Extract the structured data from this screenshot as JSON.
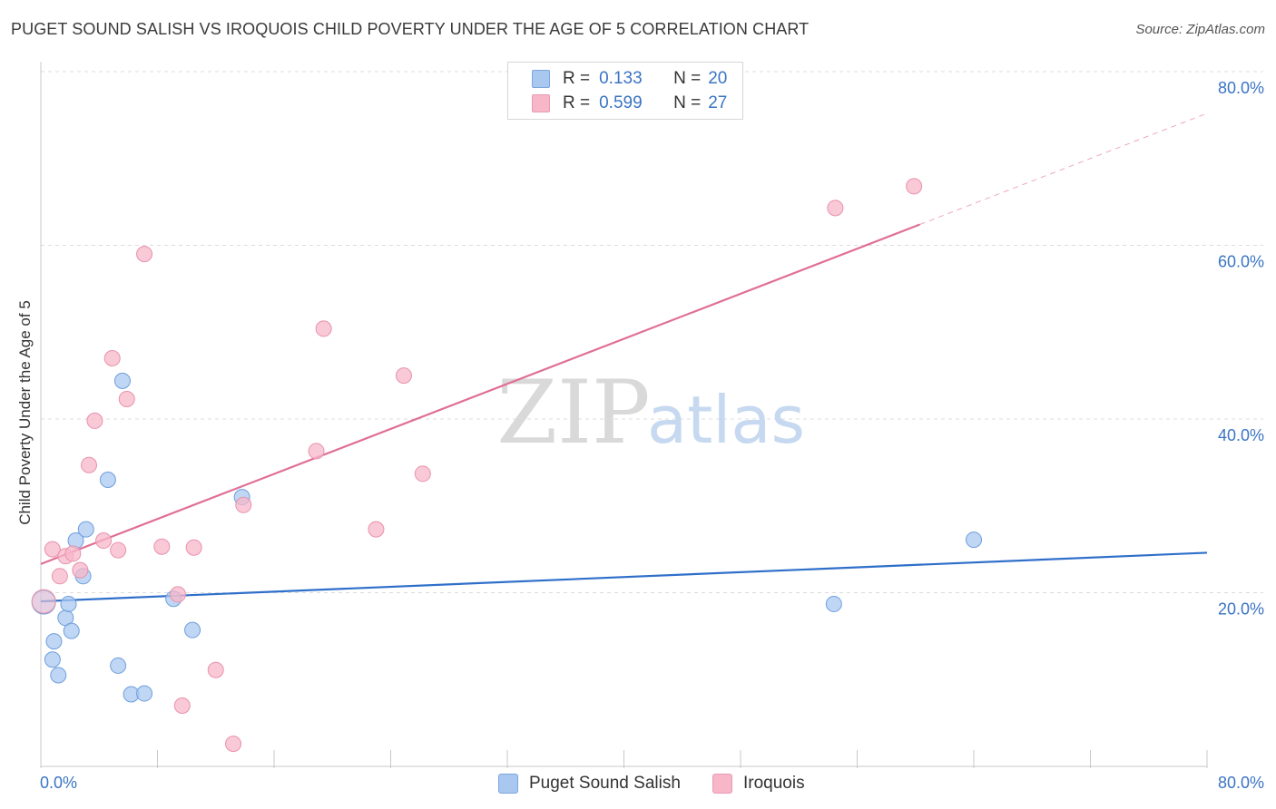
{
  "title": "PUGET SOUND SALISH VS IROQUOIS CHILD POVERTY UNDER THE AGE OF 5 CORRELATION CHART",
  "source": "Source: ZipAtlas.com",
  "watermark": {
    "zip": "ZIP",
    "atlas": "atlas"
  },
  "legend": {
    "rows": [
      {
        "r_label": "R =",
        "r_value": "0.133",
        "n_label": "N =",
        "n_value": "20",
        "color": "#a9c8f0"
      },
      {
        "r_label": "R =",
        "r_value": "0.599",
        "n_label": "N =",
        "n_value": "27",
        "color": "#f7b7c9"
      }
    ],
    "bottom": [
      {
        "name": "Puget Sound Salish",
        "color": "#a9c8f0"
      },
      {
        "name": "Iroquois",
        "color": "#f7b7c9"
      }
    ]
  },
  "chart_data": {
    "type": "scatter",
    "xlabel": "",
    "ylabel": "Child Poverty Under the Age of 5",
    "xlim": [
      0,
      80
    ],
    "ylim": [
      0,
      80
    ],
    "x_tick_labels": [
      "0.0%",
      "80.0%"
    ],
    "y_ticks": [
      {
        "value": 20,
        "label": "20.0%"
      },
      {
        "value": 40,
        "label": "40.0%"
      },
      {
        "value": 60,
        "label": "60.0%"
      },
      {
        "value": 80,
        "label": "80.0%"
      }
    ],
    "series": [
      {
        "name": "Puget Sound Salish",
        "color": "#a9c8f0",
        "stroke": "#6f9fdc",
        "line_color": "#2f6fca",
        "points": [
          [
            0.2,
            18.9
          ],
          [
            0.8,
            12.3
          ],
          [
            0.9,
            14.4
          ],
          [
            1.2,
            10.5
          ],
          [
            1.7,
            17.1
          ],
          [
            1.9,
            18.7
          ],
          [
            2.1,
            15.6
          ],
          [
            2.4,
            26.0
          ],
          [
            2.9,
            21.9
          ],
          [
            3.1,
            27.3
          ],
          [
            5.6,
            44.4
          ],
          [
            4.6,
            33.0
          ],
          [
            5.3,
            11.6
          ],
          [
            6.2,
            8.3
          ],
          [
            7.1,
            8.4
          ],
          [
            9.1,
            19.3
          ],
          [
            10.4,
            15.7
          ],
          [
            13.8,
            31.0
          ],
          [
            54.4,
            18.7
          ],
          [
            64.0,
            26.1
          ]
        ],
        "trend": [
          [
            0,
            19.0
          ],
          [
            80,
            24.6
          ]
        ]
      },
      {
        "name": "Iroquois",
        "color": "#f7b7c9",
        "stroke": "#e892ab",
        "line_color": "#e06f96",
        "points": [
          [
            0.2,
            19.0
          ],
          [
            0.8,
            25.0
          ],
          [
            1.3,
            21.9
          ],
          [
            1.7,
            24.2
          ],
          [
            2.2,
            24.5
          ],
          [
            2.7,
            22.6
          ],
          [
            3.3,
            34.7
          ],
          [
            3.7,
            39.8
          ],
          [
            4.3,
            26.0
          ],
          [
            4.9,
            47.0
          ],
          [
            5.3,
            24.9
          ],
          [
            5.9,
            42.3
          ],
          [
            7.1,
            59.0
          ],
          [
            8.3,
            25.3
          ],
          [
            9.4,
            19.8
          ],
          [
            9.7,
            7.0
          ],
          [
            10.5,
            25.2
          ],
          [
            12.0,
            11.1
          ],
          [
            13.2,
            2.6
          ],
          [
            13.9,
            30.1
          ],
          [
            18.9,
            36.3
          ],
          [
            19.4,
            50.4
          ],
          [
            23.0,
            27.3
          ],
          [
            24.9,
            45.0
          ],
          [
            26.2,
            33.7
          ],
          [
            54.5,
            64.3
          ],
          [
            59.9,
            66.8
          ]
        ],
        "trend": [
          [
            0,
            23.3
          ],
          [
            60.3,
            62.4
          ]
        ],
        "trend_dashed": [
          [
            60.3,
            62.4
          ],
          [
            80,
            75.2
          ]
        ]
      }
    ]
  }
}
